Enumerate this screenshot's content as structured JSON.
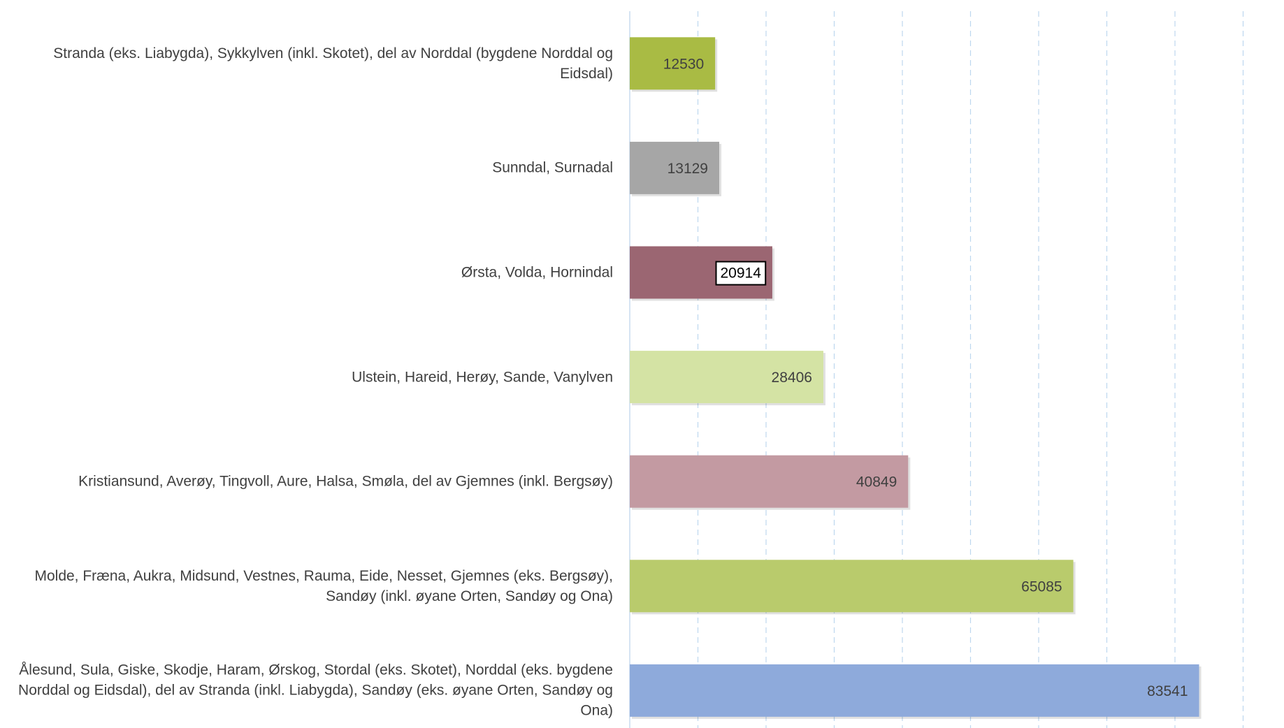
{
  "chart_data": {
    "type": "bar",
    "orientation": "horizontal",
    "categories": [
      "Stranda (eks. Liabygda), Sykkylven (inkl. Skotet), del av Norddal (bygdene Norddal og Eidsdal)",
      "Sunndal, Surnadal",
      "Ørsta, Volda, Hornindal",
      "Ulstein, Hareid, Herøy, Sande, Vanylven",
      "Kristiansund, Averøy, Tingvoll, Aure, Halsa, Smøla, del av Gjemnes (inkl. Bergsøy)",
      "Molde, Fræna, Aukra, Midsund, Vestnes, Rauma, Eide, Nesset, Gjemnes (eks. Bergsøy), Sandøy (inkl. øyane Orten, Sandøy og Ona)",
      "Ålesund, Sula, Giske, Skodje, Haram, Ørskog, Stordal (eks. Skotet), Norddal (eks. bygdene Norddal og Eidsdal), del av Stranda (inkl. Liabygda), Sandøy (eks. øyane Orten, Sandøy og Ona)"
    ],
    "values": [
      12530,
      13129,
      20914,
      28406,
      40849,
      65085,
      83541
    ],
    "colors": [
      "#a9bb44",
      "#a6a6a6",
      "#9b6672",
      "#d4e3a4",
      "#c39aa2",
      "#b9cb6c",
      "#8eaadb"
    ],
    "xlim": [
      0,
      96000
    ],
    "xticks": [
      10000,
      20000,
      30000,
      40000,
      50000,
      60000,
      70000,
      80000,
      90000
    ],
    "grid": true
  }
}
